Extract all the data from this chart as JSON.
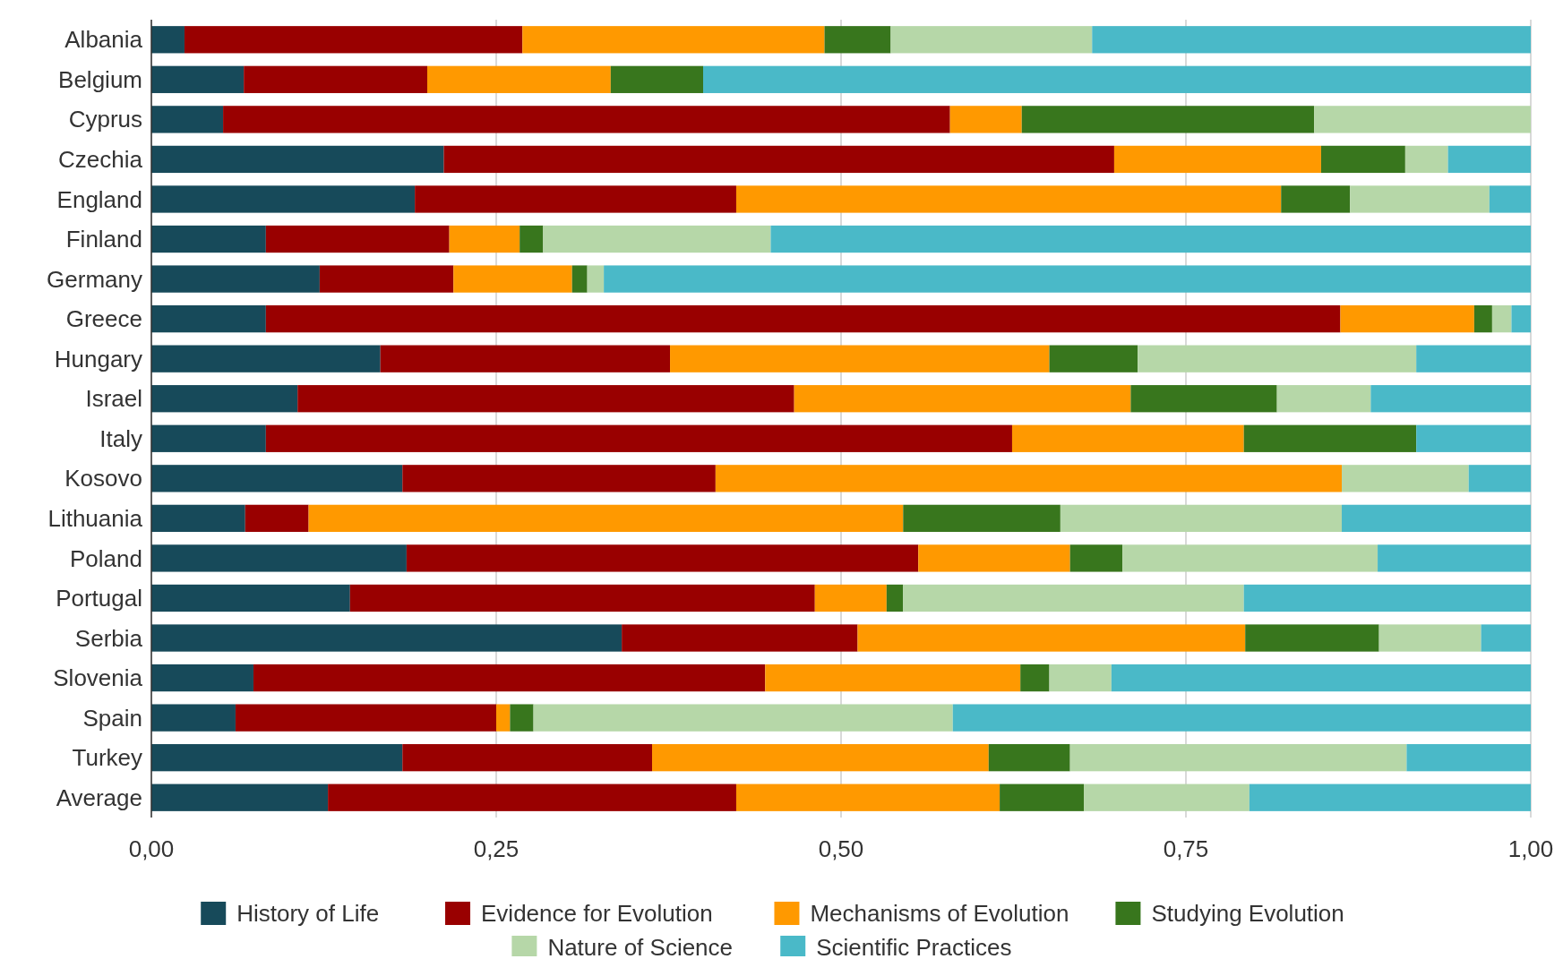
{
  "chart_data": {
    "type": "bar",
    "orientation": "horizontal",
    "stacked": true,
    "categories": [
      "Albania",
      "Belgium",
      "Cyprus",
      "Czechia",
      "England",
      "Finland",
      "Germany",
      "Greece",
      "Hungary",
      "Israel",
      "Italy",
      "Kosovo",
      "Lithuania",
      "Poland",
      "Portugal",
      "Serbia",
      "Slovenia",
      "Spain",
      "Turkey",
      "Average"
    ],
    "series": [
      {
        "name": "History of Life",
        "color": "#174a5a",
        "values": [
          0.024,
          0.067,
          0.052,
          0.212,
          0.191,
          0.083,
          0.122,
          0.083,
          0.166,
          0.106,
          0.083,
          0.182,
          0.068,
          0.185,
          0.144,
          0.341,
          0.074,
          0.061,
          0.182,
          0.128
        ]
      },
      {
        "name": "Evidence for Evolution",
        "color": "#990000",
        "values": [
          0.245,
          0.133,
          0.527,
          0.486,
          0.233,
          0.133,
          0.097,
          0.779,
          0.21,
          0.36,
          0.541,
          0.227,
          0.046,
          0.371,
          0.337,
          0.171,
          0.371,
          0.189,
          0.181,
          0.296
        ]
      },
      {
        "name": "Mechanisms of Evolution",
        "color": "#ff9900",
        "values": [
          0.219,
          0.133,
          0.052,
          0.15,
          0.395,
          0.051,
          0.086,
          0.097,
          0.275,
          0.244,
          0.168,
          0.454,
          0.431,
          0.11,
          0.052,
          0.281,
          0.185,
          0.01,
          0.244,
          0.191
        ]
      },
      {
        "name": "Studying Evolution",
        "color": "#38761d",
        "values": [
          0.048,
          0.067,
          0.212,
          0.061,
          0.05,
          0.017,
          0.011,
          0.013,
          0.064,
          0.106,
          0.125,
          0,
          0.114,
          0.038,
          0.012,
          0.097,
          0.021,
          0.017,
          0.059,
          0.061
        ]
      },
      {
        "name": "Nature of Science",
        "color": "#b6d7a8",
        "values": [
          0.146,
          0,
          0.157,
          0.031,
          0.101,
          0.165,
          0.012,
          0.014,
          0.202,
          0.068,
          0,
          0.092,
          0.204,
          0.185,
          0.247,
          0.074,
          0.045,
          0.304,
          0.244,
          0.12
        ]
      },
      {
        "name": "Scientific Practices",
        "color": "#4ab9c8",
        "values": [
          0.318,
          0.6,
          0,
          0.06,
          0.03,
          0.551,
          0.672,
          0.014,
          0.083,
          0.116,
          0.083,
          0.045,
          0.137,
          0.111,
          0.208,
          0.036,
          0.304,
          0.419,
          0.09,
          0.204
        ]
      }
    ],
    "xlim": [
      0,
      1
    ],
    "xticks": [
      {
        "value": 0,
        "label": "0,00"
      },
      {
        "value": 0.25,
        "label": "0,25"
      },
      {
        "value": 0.5,
        "label": "0,50"
      },
      {
        "value": 0.75,
        "label": "0,75"
      },
      {
        "value": 1,
        "label": "1,00"
      }
    ],
    "grid": "x",
    "legend": "bottom"
  }
}
